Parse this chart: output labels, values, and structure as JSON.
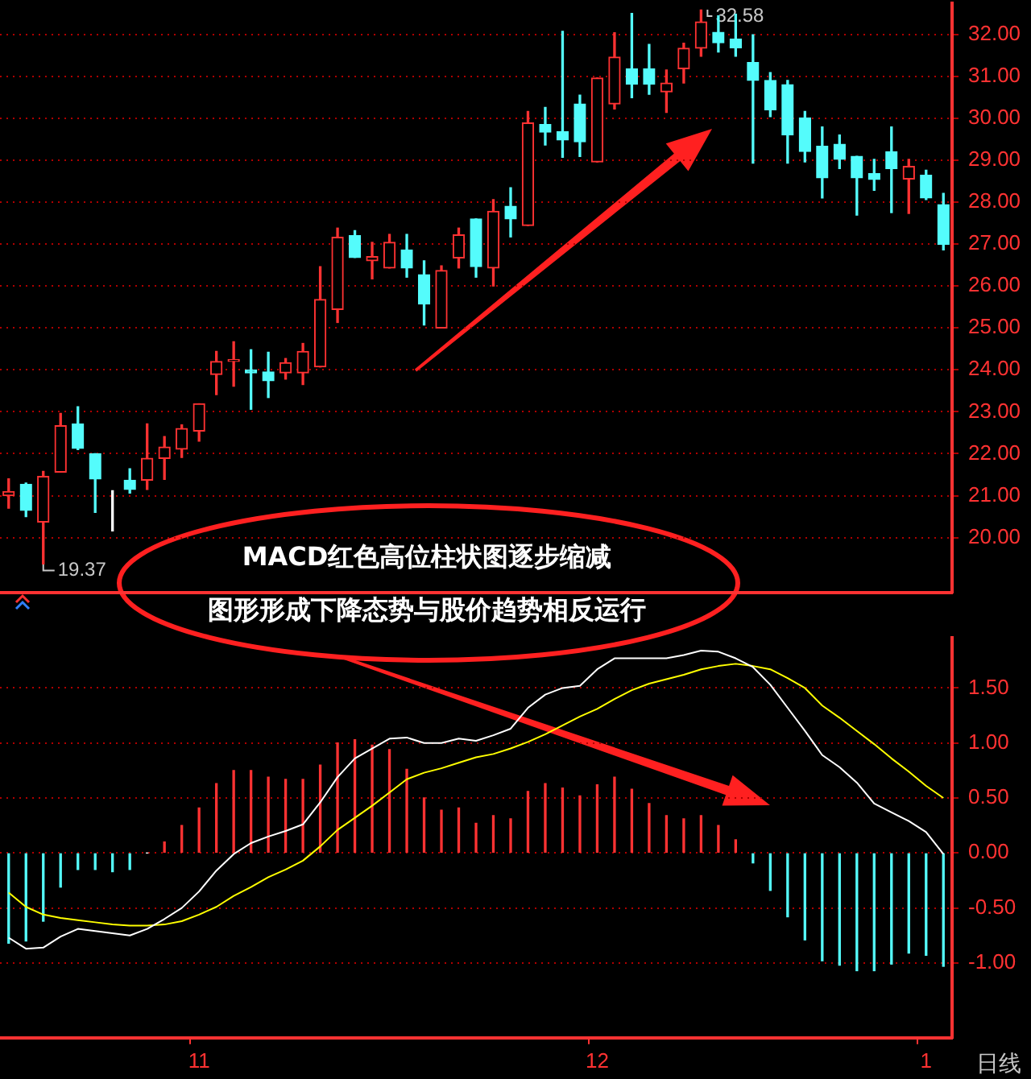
{
  "chart_data": [
    {
      "type": "candlestick",
      "legend": false,
      "grid": "y",
      "tick_labels": "y",
      "categories": [
        null,
        null,
        null,
        null,
        null,
        null,
        null,
        null,
        null,
        null,
        null,
        "11",
        null,
        null,
        null,
        null,
        null,
        null,
        null,
        null,
        null,
        null,
        null,
        null,
        null,
        null,
        null,
        null,
        null,
        null,
        null,
        null,
        null,
        null,
        "12",
        null,
        null,
        null,
        null,
        null,
        null,
        null,
        null,
        null,
        null,
        null,
        null,
        null,
        null,
        null,
        null,
        null,
        null,
        "1",
        null
      ],
      "ohlc": [
        [
          21.0,
          21.4,
          20.7,
          21.1
        ],
        [
          21.27,
          21.3,
          20.5,
          20.65
        ],
        [
          20.37,
          21.58,
          19.37,
          21.46
        ],
        [
          21.56,
          22.96,
          21.56,
          22.67
        ],
        [
          22.71,
          23.12,
          22.1,
          22.13
        ],
        [
          22.0,
          22.0,
          20.6,
          21.4
        ],
        [
          20.94,
          21.12,
          20.16,
          20.94
        ],
        [
          21.37,
          21.64,
          21.06,
          21.15
        ],
        [
          21.37,
          22.71,
          21.15,
          21.89
        ],
        [
          21.89,
          22.41,
          21.39,
          22.16
        ],
        [
          22.11,
          22.69,
          21.91,
          22.6
        ],
        [
          22.54,
          23.19,
          22.3,
          23.19
        ],
        [
          23.89,
          24.44,
          23.41,
          24.2
        ],
        [
          24.2,
          24.67,
          23.61,
          24.25
        ],
        [
          24.0,
          24.48,
          23.06,
          23.93
        ],
        [
          23.95,
          24.42,
          23.34,
          23.74
        ],
        [
          23.93,
          24.27,
          23.78,
          24.17
        ],
        [
          23.93,
          24.63,
          23.65,
          24.44
        ],
        [
          24.07,
          26.46,
          24.07,
          25.68
        ],
        [
          25.44,
          27.38,
          25.13,
          27.16
        ],
        [
          27.2,
          27.32,
          26.68,
          26.68
        ],
        [
          26.6,
          27.04,
          26.17,
          26.7
        ],
        [
          26.43,
          27.23,
          26.43,
          27.04
        ],
        [
          26.86,
          27.23,
          26.21,
          26.43
        ],
        [
          26.27,
          26.6,
          25.07,
          25.57
        ],
        [
          25.0,
          26.48,
          25.0,
          26.37
        ],
        [
          26.67,
          27.38,
          26.43,
          27.22
        ],
        [
          27.6,
          27.6,
          26.21,
          26.46
        ],
        [
          26.43,
          28.06,
          26.0,
          27.78
        ],
        [
          27.9,
          28.34,
          27.17,
          27.6
        ],
        [
          27.44,
          30.16,
          27.44,
          29.89
        ],
        [
          29.85,
          30.26,
          29.36,
          29.67
        ],
        [
          29.68,
          32.07,
          29.07,
          29.48
        ],
        [
          30.34,
          30.55,
          29.09,
          29.44
        ],
        [
          28.96,
          30.96,
          28.96,
          30.96
        ],
        [
          30.34,
          32.04,
          30.22,
          31.46
        ],
        [
          31.18,
          32.5,
          30.49,
          30.81
        ],
        [
          31.18,
          31.76,
          30.57,
          30.81
        ],
        [
          30.63,
          31.15,
          30.14,
          30.84
        ],
        [
          31.18,
          31.79,
          30.84,
          31.67
        ],
        [
          31.67,
          32.58,
          31.48,
          32.3
        ],
        [
          32.05,
          32.44,
          31.58,
          31.8
        ],
        [
          31.89,
          32.48,
          31.48,
          31.68
        ],
        [
          31.33,
          31.99,
          28.93,
          30.9
        ],
        [
          30.9,
          31.09,
          30.04,
          30.2
        ],
        [
          30.8,
          30.9,
          28.93,
          29.6
        ],
        [
          30.01,
          30.16,
          28.96,
          29.21
        ],
        [
          29.33,
          29.79,
          28.1,
          28.58
        ],
        [
          29.38,
          29.6,
          28.8,
          29.02
        ],
        [
          29.09,
          29.09,
          27.69,
          28.58
        ],
        [
          28.68,
          29.02,
          28.28,
          28.54
        ],
        [
          29.2,
          29.79,
          27.75,
          28.8
        ],
        [
          28.55,
          29.02,
          27.73,
          28.85
        ],
        [
          28.64,
          28.76,
          28.06,
          28.1
        ],
        [
          27.94,
          28.21,
          26.86,
          26.99
        ]
      ],
      "colors": [
        "#ff3232",
        "#54fcfc",
        "#ff3232",
        "#ff3232",
        "#54fcfc",
        "#54fcfc",
        "#ffffff",
        "#54fcfc",
        "#ff3232",
        "#ff3232",
        "#ff3232",
        "#ff3232",
        "#ff3232",
        "#ff3232",
        "#54fcfc",
        "#54fcfc",
        "#ff3232",
        "#ff3232",
        "#ff3232",
        "#ff3232",
        "#54fcfc",
        "#ff3232",
        "#ff3232",
        "#54fcfc",
        "#54fcfc",
        "#ff3232",
        "#ff3232",
        "#54fcfc",
        "#ff3232",
        "#54fcfc",
        "#ff3232",
        "#54fcfc",
        "#54fcfc",
        "#54fcfc",
        "#ff3232",
        "#ff3232",
        "#54fcfc",
        "#54fcfc",
        "#ff3232",
        "#ff3232",
        "#ff3232",
        "#54fcfc",
        "#54fcfc",
        "#54fcfc",
        "#54fcfc",
        "#54fcfc",
        "#54fcfc",
        "#54fcfc",
        "#54fcfc",
        "#54fcfc",
        "#54fcfc",
        "#54fcfc",
        "#ff3232",
        "#54fcfc",
        "#54fcfc"
      ],
      "ylim": [
        18.68,
        32.75
      ],
      "yticks": [
        {
          "value": 20,
          "label": "20.00"
        },
        {
          "value": 21,
          "label": "21.00"
        },
        {
          "value": 22,
          "label": "22.00"
        },
        {
          "value": 23,
          "label": "23.00"
        },
        {
          "value": 24,
          "label": "24.00"
        },
        {
          "value": 25,
          "label": "25.00"
        },
        {
          "value": 26,
          "label": "26.00"
        },
        {
          "value": 27,
          "label": "27.00"
        },
        {
          "value": 28,
          "label": "28.00"
        },
        {
          "value": 29,
          "label": "29.00"
        },
        {
          "value": 30,
          "label": "30.00"
        },
        {
          "value": 31,
          "label": "31.00"
        },
        {
          "value": 32,
          "label": "32.00"
        }
      ],
      "annotations": [
        "19.37",
        "32.58",
        "MACD红色高位柱状图逐步缩减",
        "图形形成下降态势与股价趋势相反运行"
      ]
    },
    {
      "type": "bar",
      "legend": false,
      "grid": "y",
      "marker": "none",
      "categories": [
        null,
        null,
        null,
        null,
        null,
        null,
        null,
        null,
        null,
        null,
        null,
        "11",
        null,
        null,
        null,
        null,
        null,
        null,
        null,
        null,
        null,
        null,
        null,
        null,
        null,
        null,
        null,
        null,
        null,
        null,
        null,
        null,
        null,
        null,
        "12",
        null,
        null,
        null,
        null,
        null,
        null,
        null,
        null,
        null,
        null,
        null,
        null,
        null,
        null,
        null,
        null,
        null,
        null,
        "1",
        null
      ],
      "series": [
        {
          "type": "bar",
          "values": [
            -0.82,
            -0.8,
            -0.62,
            -0.31,
            -0.15,
            -0.15,
            -0.17,
            -0.15,
            0.0,
            0.1,
            0.25,
            0.41,
            0.63,
            0.75,
            0.75,
            0.69,
            0.67,
            0.67,
            0.8,
            1.0,
            1.03,
            0.98,
            0.94,
            0.76,
            0.5,
            0.39,
            0.41,
            0.27,
            0.34,
            0.31,
            0.56,
            0.63,
            0.59,
            0.52,
            0.62,
            0.69,
            0.58,
            0.45,
            0.34,
            0.31,
            0.34,
            0.25,
            0.12,
            -0.09,
            -0.34,
            -0.58,
            -0.79,
            -0.98,
            -1.02,
            -1.07,
            -1.07,
            -1.01,
            -0.91,
            -0.93,
            -1.03
          ],
          "colors": [
            "#54fcfc",
            "#54fcfc",
            "#54fcfc",
            "#54fcfc",
            "#54fcfc",
            "#54fcfc",
            "#54fcfc",
            "#54fcfc",
            "#ffffff",
            "#ff3232",
            "#ff3232",
            "#ff3232",
            "#ff3232",
            "#ff3232",
            "#ff3232",
            "#ff3232",
            "#ff3232",
            "#ff3232",
            "#ff3232",
            "#ff3232",
            "#ff3232",
            "#ff3232",
            "#ff3232",
            "#ff3232",
            "#ff3232",
            "#ff3232",
            "#ff3232",
            "#ff3232",
            "#ff3232",
            "#ff3232",
            "#ff3232",
            "#ff3232",
            "#ff3232",
            "#ff3232",
            "#ff3232",
            "#ff3232",
            "#ff3232",
            "#ff3232",
            "#ff3232",
            "#ff3232",
            "#ff3232",
            "#ff3232",
            "#ff3232",
            "#54fcfc",
            "#54fcfc",
            "#54fcfc",
            "#54fcfc",
            "#54fcfc",
            "#54fcfc",
            "#54fcfc",
            "#54fcfc",
            "#54fcfc",
            "#54fcfc",
            "#54fcfc",
            "#54fcfc"
          ]
        },
        {
          "type": "line",
          "color": "#ffffff",
          "values": [
            -0.77,
            -0.87,
            -0.86,
            -0.76,
            -0.69,
            -0.71,
            -0.73,
            -0.75,
            -0.69,
            -0.6,
            -0.5,
            -0.35,
            -0.16,
            -0.01,
            0.09,
            0.15,
            0.2,
            0.26,
            0.46,
            0.69,
            0.86,
            0.95,
            1.04,
            1.05,
            1.0,
            1.0,
            1.04,
            1.02,
            1.07,
            1.13,
            1.32,
            1.44,
            1.5,
            1.52,
            1.67,
            1.77,
            1.77,
            1.77,
            1.77,
            1.8,
            1.84,
            1.83,
            1.77,
            1.69,
            1.53,
            1.32,
            1.11,
            0.89,
            0.78,
            0.64,
            0.45,
            0.37,
            0.29,
            0.19,
            -0.01
          ]
        },
        {
          "type": "line",
          "color": "#ffff00",
          "values": [
            -0.36,
            -0.49,
            -0.56,
            -0.59,
            -0.61,
            -0.63,
            -0.65,
            -0.66,
            -0.66,
            -0.65,
            -0.62,
            -0.56,
            -0.49,
            -0.39,
            -0.31,
            -0.22,
            -0.15,
            -0.07,
            0.06,
            0.21,
            0.32,
            0.43,
            0.55,
            0.67,
            0.73,
            0.77,
            0.82,
            0.87,
            0.9,
            0.95,
            1.01,
            1.08,
            1.16,
            1.24,
            1.31,
            1.4,
            1.48,
            1.54,
            1.58,
            1.62,
            1.67,
            1.7,
            1.72,
            1.7,
            1.67,
            1.59,
            1.5,
            1.34,
            1.23,
            1.11,
            0.99,
            0.86,
            0.74,
            0.61,
            0.5
          ]
        }
      ],
      "ylim": [
        -1.68,
        1.96
      ],
      "yticks": [
        {
          "value": -1,
          "label": "-1.00"
        },
        {
          "value": -0.5,
          "label": "-0.50"
        },
        {
          "value": 0,
          "label": "0.00"
        },
        {
          "value": 0.5,
          "label": "0.50"
        },
        {
          "value": 1,
          "label": "1.00"
        },
        {
          "value": 1.5,
          "label": "1.50"
        }
      ],
      "annotations": [
        "日线"
      ]
    }
  ]
}
